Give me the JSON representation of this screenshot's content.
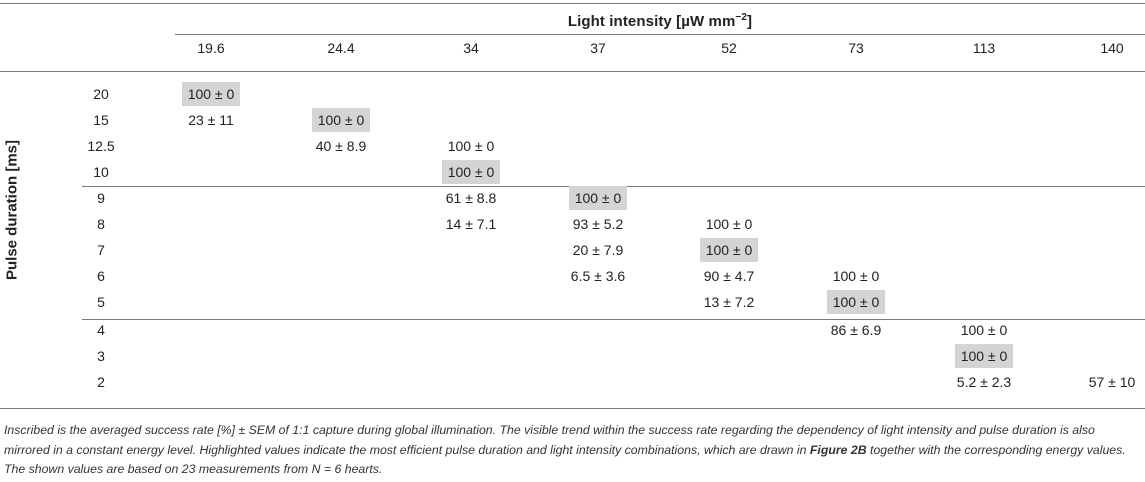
{
  "header": {
    "title_prefix": "Light intensity [",
    "title_unit_mu": "µ",
    "title_unit": "W mm",
    "title_exp": "−2",
    "title_suffix": "]"
  },
  "y_axis_label": "Pulse duration [ms]",
  "columns": [
    "19.6",
    "24.4",
    "34",
    "37",
    "52",
    "73",
    "113",
    "140"
  ],
  "rows": [
    {
      "label": "20",
      "cells": [
        "100 ± 0",
        "",
        "",
        "",
        "",
        "",
        "",
        ""
      ]
    },
    {
      "label": "15",
      "cells": [
        "23 ± 11",
        "100 ± 0",
        "",
        "",
        "",
        "",
        "",
        ""
      ]
    },
    {
      "label": "12.5",
      "cells": [
        "",
        "40 ± 8.9",
        "100 ± 0",
        "",
        "",
        "",
        "",
        ""
      ]
    },
    {
      "label": "10",
      "cells": [
        "",
        "",
        "100 ± 0",
        "",
        "",
        "",
        "",
        ""
      ]
    },
    {
      "label": "9",
      "cells": [
        "",
        "",
        "61 ± 8.8",
        "100 ± 0",
        "",
        "",
        "",
        ""
      ]
    },
    {
      "label": "8",
      "cells": [
        "",
        "",
        "14 ± 7.1",
        "93 ± 5.2",
        "100 ± 0",
        "",
        "",
        ""
      ]
    },
    {
      "label": "7",
      "cells": [
        "",
        "",
        "",
        "20 ± 7.9",
        "100 ± 0",
        "",
        "",
        ""
      ]
    },
    {
      "label": "6",
      "cells": [
        "",
        "",
        "",
        "6.5 ± 3.6",
        "90 ± 4.7",
        "100 ± 0",
        "",
        ""
      ]
    },
    {
      "label": "5",
      "cells": [
        "",
        "",
        "",
        "",
        "13 ± 7.2",
        "100 ± 0",
        "",
        ""
      ]
    },
    {
      "label": "4",
      "cells": [
        "",
        "",
        "",
        "",
        "",
        "86 ± 6.9",
        "100 ± 0",
        ""
      ]
    },
    {
      "label": "3",
      "cells": [
        "",
        "",
        "",
        "",
        "",
        "",
        "100 ± 0",
        ""
      ]
    },
    {
      "label": "2",
      "cells": [
        "",
        "",
        "",
        "",
        "",
        "",
        "5.2 ± 2.3",
        "57 ± 10"
      ]
    }
  ],
  "highlighted": [
    [
      0,
      0
    ],
    [
      1,
      1
    ],
    [
      3,
      2
    ],
    [
      4,
      3
    ],
    [
      6,
      4
    ],
    [
      8,
      5
    ],
    [
      10,
      6
    ]
  ],
  "caption": {
    "part1": "Inscribed is the averaged success rate [%] ± SEM of 1:1 capture during global illumination. The visible trend within the success rate regarding the dependency of light intensity and pulse duration is also mirrored in a constant energy level. Highlighted values indicate the most efficient pulse duration and light intensity combinations, which are drawn in ",
    "figure_ref": "Figure 2B",
    "part2": " together with the corresponding energy values. The shown values are based on 23 measurements from N = 6 hearts."
  }
}
